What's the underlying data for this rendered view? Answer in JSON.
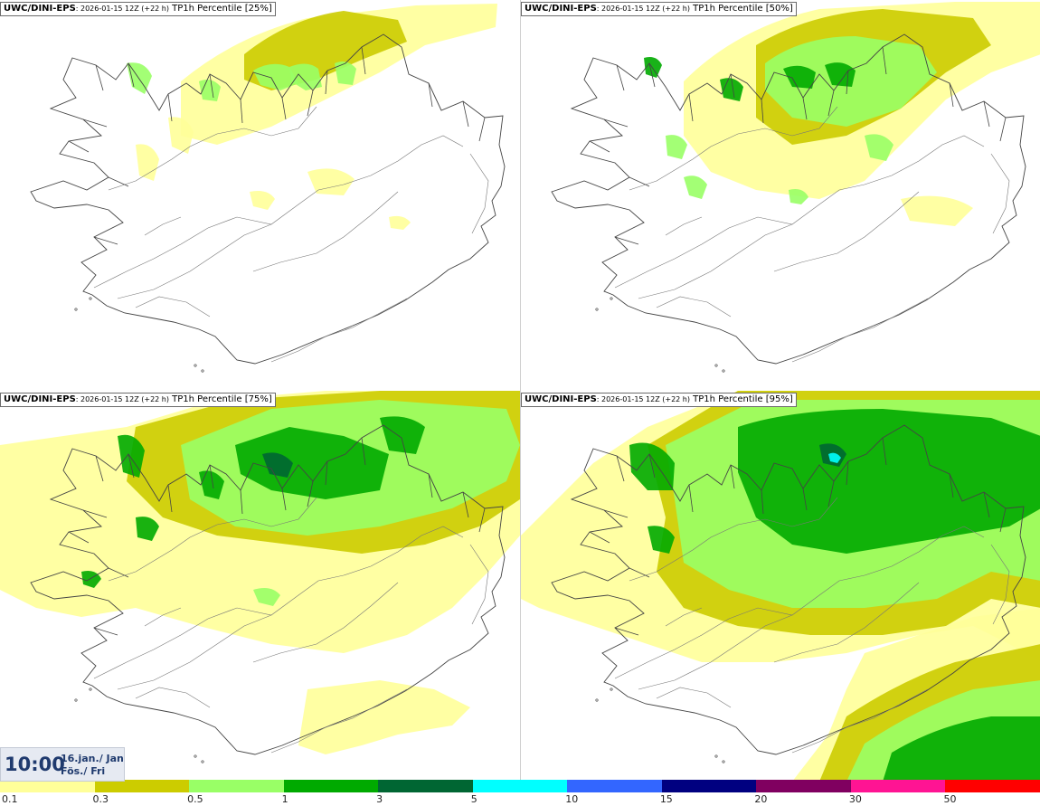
{
  "panels": [
    {
      "model": "UWC/DINI-EPS",
      "run": ": 2026-01-15 12Z (+22 h)",
      "field": " TP1h Percentile [25%]",
      "percentile": 25
    },
    {
      "model": "UWC/DINI-EPS",
      "run": ": 2026-01-15 12Z (+22 h)",
      "field": " TP1h Percentile [50%]",
      "percentile": 50
    },
    {
      "model": "UWC/DINI-EPS",
      "run": ": 2026-01-15 12Z (+22 h)",
      "field": " TP1h Percentile [75%]",
      "percentile": 75
    },
    {
      "model": "UWC/DINI-EPS",
      "run": ": 2026-01-15 12Z (+22 h)",
      "field": " TP1h Percentile [95%]",
      "percentile": 95
    }
  ],
  "valid_time": {
    "hour": "10:00",
    "date": "16.jan./ Jan",
    "weekday": "Fös./ Fri"
  },
  "legend": {
    "ticks": [
      "0.1",
      "0.3",
      "0.5",
      "1",
      "3",
      "5",
      "10",
      "15",
      "20",
      "30",
      "50"
    ],
    "colors": [
      "#ffff99",
      "#cccc00",
      "#99ff66",
      "#00aa00",
      "#006633",
      "#00ffff",
      "#3366ff",
      "#000080",
      "#800060",
      "#ff1493",
      "#ff0000"
    ]
  },
  "map_colors": {
    "outline": "#444444",
    "roads": "#777777"
  }
}
